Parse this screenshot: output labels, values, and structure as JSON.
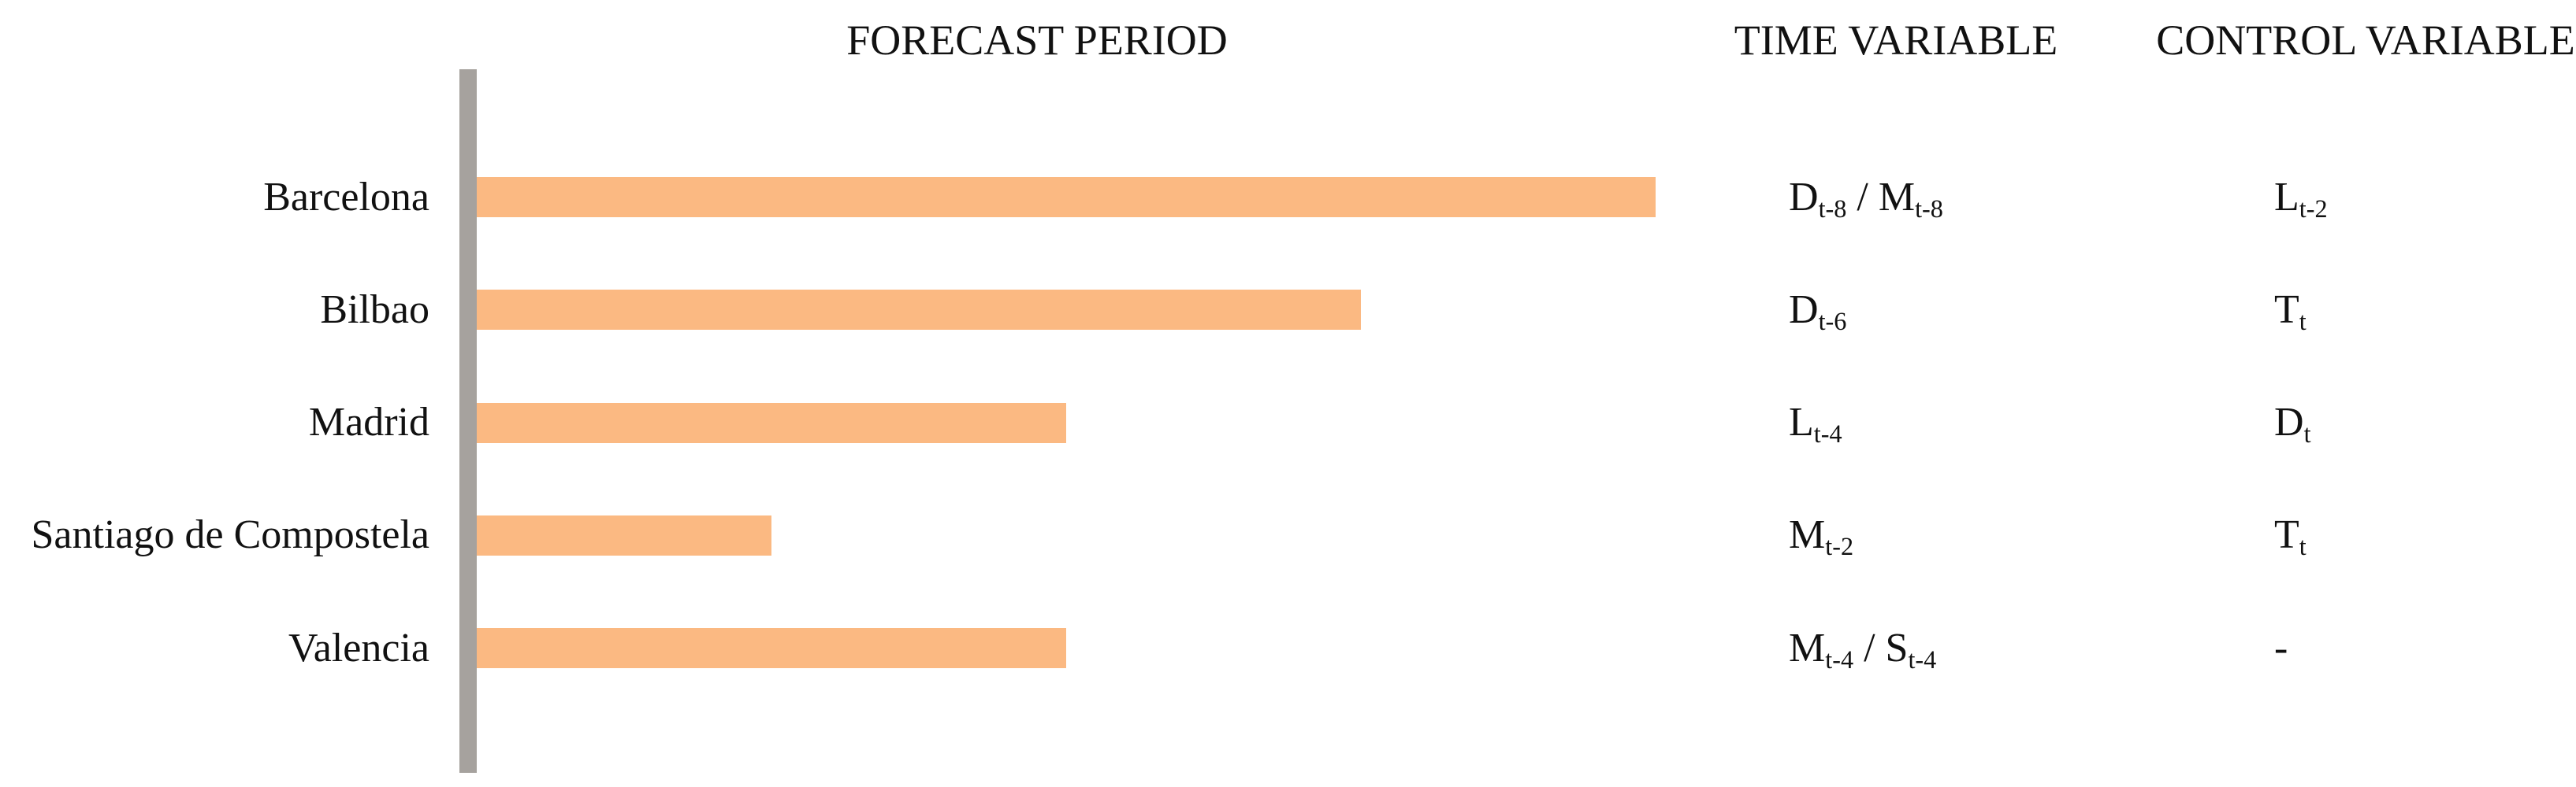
{
  "headers": {
    "forecast": "FORECAST PERIOD",
    "time": "TIME VARIABLE",
    "control": "CONTROL VARIABLE"
  },
  "chart_data": {
    "type": "bar",
    "orientation": "horizontal",
    "title": "FORECAST PERIOD",
    "categories": [
      "Barcelona",
      "Bilbao",
      "Madrid",
      "Santiago de Compostela",
      "Valencia"
    ],
    "values": [
      8,
      6,
      4,
      2,
      4
    ],
    "value_unit": "lag periods (t-n)",
    "xlim": [
      0,
      9
    ],
    "grid": false,
    "legend": false,
    "bar_color": "#FBB982",
    "axis_color": "#A6A29E",
    "annotation_columns": [
      "TIME VARIABLE",
      "CONTROL VARIABLE"
    ],
    "rows": [
      {
        "city": "Barcelona",
        "value": 8,
        "time": "D_{t-8} / M_{t-8}",
        "control": "L_{t-2}"
      },
      {
        "city": "Bilbao",
        "value": 6,
        "time": "D_{t-6}",
        "control": "T_{t}"
      },
      {
        "city": "Madrid",
        "value": 4,
        "time": "L_{t-4}",
        "control": "D_{t}"
      },
      {
        "city": "Santiago de Compostela",
        "value": 2,
        "time": "M_{t-2}",
        "control": "T_{t}"
      },
      {
        "city": "Valencia",
        "value": 4,
        "time": "M_{t-4} / S_{t-4}",
        "control": "-"
      }
    ]
  }
}
